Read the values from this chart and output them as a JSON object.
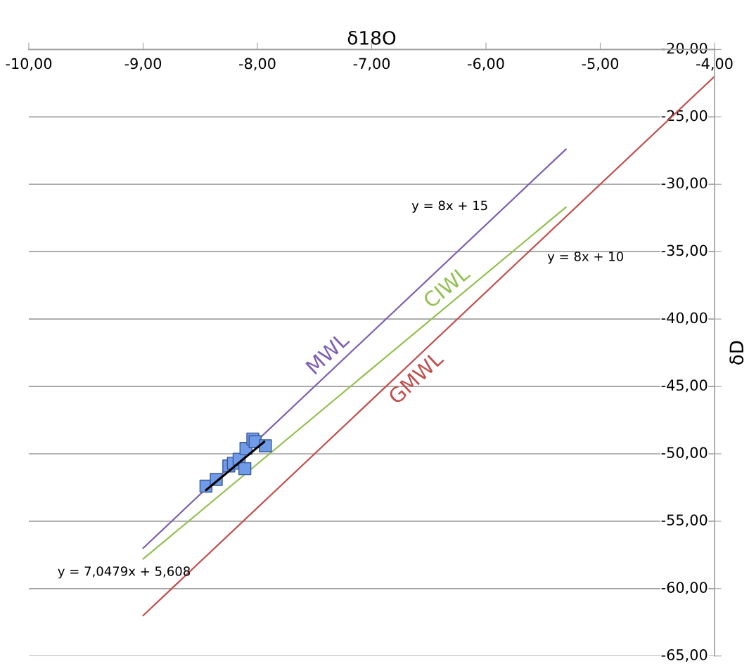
{
  "chart_data": {
    "type": "scatter",
    "xlabel": "δ18O",
    "ylabel": "δD",
    "xlim": [
      -10,
      -4
    ],
    "ylim": [
      -65,
      -20
    ],
    "xticks": [
      {
        "value": -10,
        "label": "-10,00"
      },
      {
        "value": -9,
        "label": "-9,00"
      },
      {
        "value": -8,
        "label": "-8,00"
      },
      {
        "value": -7,
        "label": "-7,00"
      },
      {
        "value": -6,
        "label": "-6,00"
      },
      {
        "value": -5,
        "label": "-5,00"
      },
      {
        "value": -4,
        "label": "-4,00"
      }
    ],
    "yticks": [
      {
        "value": -65,
        "label": "-65,00"
      },
      {
        "value": -60,
        "label": "-60,00"
      },
      {
        "value": -55,
        "label": "-55,00"
      },
      {
        "value": -50,
        "label": "-50,00"
      },
      {
        "value": -45,
        "label": "-45,00"
      },
      {
        "value": -40,
        "label": "-40,00"
      },
      {
        "value": -35,
        "label": "-35,00"
      },
      {
        "value": -30,
        "label": "-30,00"
      },
      {
        "value": -25,
        "label": "-25,00"
      },
      {
        "value": -20,
        "label": "-20,00"
      }
    ],
    "grid": "y",
    "series": [
      {
        "marker": "square",
        "color": "#6f9be8",
        "x": [
          -8.45,
          -8.36,
          -8.25,
          -8.21,
          -8.16,
          -8.1,
          -8.11,
          -8.04,
          -8.02,
          -7.93
        ],
        "values": [
          -52.4,
          -51.9,
          -50.9,
          -50.7,
          -50.4,
          -49.6,
          -51.1,
          -48.9,
          -49.1,
          -49.4
        ]
      },
      {
        "type": "line",
        "color": "#000000",
        "x": [
          -8.45,
          -7.94
        ],
        "values": [
          -52.7,
          -49.1
        ]
      },
      {
        "type": "line",
        "name": "MWL",
        "color": "#7f60b0",
        "x": [
          -9,
          -5.3
        ],
        "values": [
          -57,
          -27.4
        ]
      },
      {
        "type": "line",
        "name": "CIWL",
        "color": "#92c050",
        "x": [
          -9,
          -5.3
        ],
        "values": [
          -57.8,
          -31.7
        ]
      },
      {
        "type": "line",
        "name": "GMWL",
        "color": "#c0504d",
        "x": [
          -9,
          -4
        ],
        "values": [
          -62,
          -22
        ]
      }
    ],
    "annotations": [
      "y = 8x + 15",
      "y = 8x + 10",
      "y = 7,0479x + 5,608"
    ]
  }
}
